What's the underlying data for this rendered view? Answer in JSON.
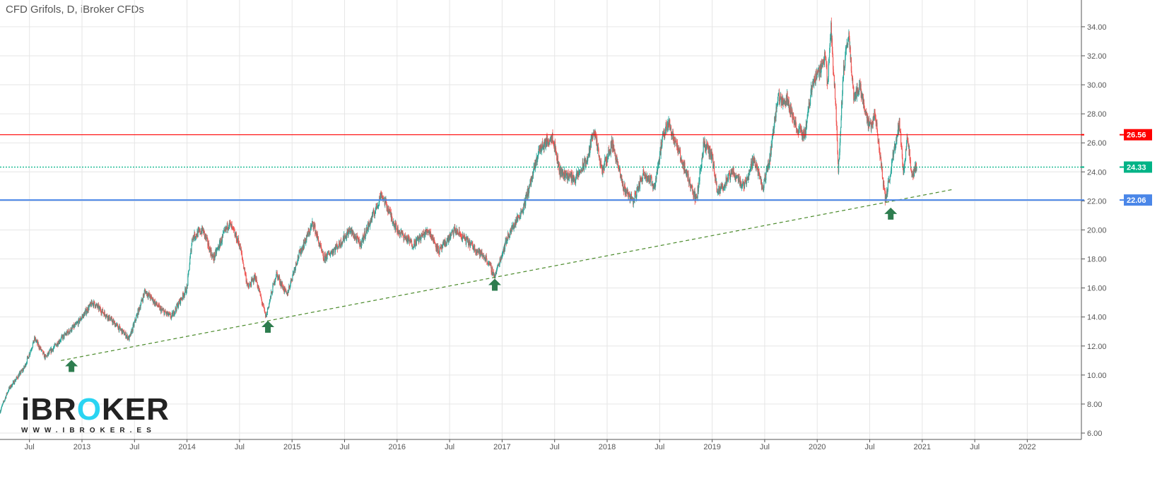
{
  "header": {
    "title": "CFD Grifols, D, iBroker CFDs"
  },
  "logo": {
    "text_a": "iBR",
    "text_o": "O",
    "text_b": "KER",
    "url": "WWW.IBROKER.ES"
  },
  "colors": {
    "up": "#26a69a",
    "down": "#ef5350",
    "resistance": "#ff0000",
    "support": "#4a86e8",
    "last": "#00b386",
    "trend": "#4a8a2a",
    "arrow": "#2e7d4f"
  },
  "chart_data": {
    "type": "candlestick",
    "title": "CFD Grifols, D, iBroker CFDs",
    "ylim": [
      5.5,
      35.5
    ],
    "y_ticks": [
      "6.00",
      "8.00",
      "10.00",
      "12.00",
      "14.00",
      "16.00",
      "18.00",
      "20.00",
      "22.00",
      "24.00",
      "26.00",
      "28.00",
      "30.00",
      "32.00",
      "34.00"
    ],
    "x_ticks": [
      {
        "t": 2012.5,
        "label": "Jul"
      },
      {
        "t": 2013,
        "label": "2013"
      },
      {
        "t": 2013.5,
        "label": "Jul"
      },
      {
        "t": 2014,
        "label": "2014"
      },
      {
        "t": 2014.5,
        "label": "Jul"
      },
      {
        "t": 2015,
        "label": "2015"
      },
      {
        "t": 2015.5,
        "label": "Jul"
      },
      {
        "t": 2016,
        "label": "2016"
      },
      {
        "t": 2016.5,
        "label": "Jul"
      },
      {
        "t": 2017,
        "label": "2017"
      },
      {
        "t": 2017.5,
        "label": "Jul"
      },
      {
        "t": 2018,
        "label": "2018"
      },
      {
        "t": 2018.5,
        "label": "Jul"
      },
      {
        "t": 2019,
        "label": "2019"
      },
      {
        "t": 2019.5,
        "label": "Jul"
      },
      {
        "t": 2020,
        "label": "2020"
      },
      {
        "t": 2020.5,
        "label": "Jul"
      },
      {
        "t": 2021,
        "label": "2021"
      },
      {
        "t": 2021.5,
        "label": "Jul"
      },
      {
        "t": 2022,
        "label": "2022"
      }
    ],
    "price_path": [
      [
        2012.22,
        7.5
      ],
      [
        2012.3,
        9
      ],
      [
        2012.45,
        10.5
      ],
      [
        2012.55,
        12.5
      ],
      [
        2012.65,
        11.2
      ],
      [
        2012.8,
        12.5
      ],
      [
        2012.95,
        13.5
      ],
      [
        2013.1,
        15
      ],
      [
        2013.25,
        14
      ],
      [
        2013.45,
        12.5
      ],
      [
        2013.6,
        15.8
      ],
      [
        2013.75,
        14.5
      ],
      [
        2013.85,
        14
      ],
      [
        2014.0,
        16
      ],
      [
        2014.05,
        19.5
      ],
      [
        2014.15,
        20
      ],
      [
        2014.25,
        18
      ],
      [
        2014.4,
        20.5
      ],
      [
        2014.5,
        19
      ],
      [
        2014.58,
        16
      ],
      [
        2014.65,
        16.8
      ],
      [
        2014.75,
        14
      ],
      [
        2014.85,
        17
      ],
      [
        2014.95,
        15.5
      ],
      [
        2015.05,
        18
      ],
      [
        2015.2,
        20.5
      ],
      [
        2015.3,
        18
      ],
      [
        2015.45,
        19
      ],
      [
        2015.55,
        20
      ],
      [
        2015.65,
        19
      ],
      [
        2015.8,
        21.5
      ],
      [
        2015.85,
        22.5
      ],
      [
        2016.0,
        20
      ],
      [
        2016.15,
        19
      ],
      [
        2016.3,
        20
      ],
      [
        2016.4,
        18.5
      ],
      [
        2016.55,
        20
      ],
      [
        2016.7,
        19
      ],
      [
        2016.85,
        18
      ],
      [
        2016.93,
        16.8
      ],
      [
        2017.05,
        19.5
      ],
      [
        2017.2,
        21.5
      ],
      [
        2017.3,
        24
      ],
      [
        2017.35,
        25.5
      ],
      [
        2017.48,
        26.5
      ],
      [
        2017.55,
        24
      ],
      [
        2017.7,
        23.5
      ],
      [
        2017.82,
        25
      ],
      [
        2017.87,
        27
      ],
      [
        2017.95,
        24
      ],
      [
        2018.05,
        26
      ],
      [
        2018.15,
        23
      ],
      [
        2018.25,
        22
      ],
      [
        2018.35,
        24
      ],
      [
        2018.45,
        23
      ],
      [
        2018.52,
        26
      ],
      [
        2018.58,
        27.5
      ],
      [
        2018.7,
        25
      ],
      [
        2018.8,
        23
      ],
      [
        2018.85,
        22
      ],
      [
        2018.92,
        26
      ],
      [
        2019.0,
        25
      ],
      [
        2019.05,
        22.5
      ],
      [
        2019.2,
        24
      ],
      [
        2019.3,
        23
      ],
      [
        2019.4,
        25
      ],
      [
        2019.48,
        22.8
      ],
      [
        2019.55,
        25
      ],
      [
        2019.62,
        29
      ],
      [
        2019.72,
        29
      ],
      [
        2019.8,
        27
      ],
      [
        2019.88,
        26.5
      ],
      [
        2019.95,
        30
      ],
      [
        2020.02,
        31
      ],
      [
        2020.08,
        32
      ],
      [
        2020.1,
        30
      ],
      [
        2020.13,
        34
      ],
      [
        2020.18,
        28
      ],
      [
        2020.2,
        24
      ],
      [
        2020.25,
        31
      ],
      [
        2020.3,
        33.5
      ],
      [
        2020.35,
        29
      ],
      [
        2020.4,
        30
      ],
      [
        2020.5,
        27
      ],
      [
        2020.55,
        28
      ],
      [
        2020.6,
        25
      ],
      [
        2020.65,
        22
      ],
      [
        2020.72,
        25
      ],
      [
        2020.78,
        27.5
      ],
      [
        2020.82,
        24
      ],
      [
        2020.86,
        26.5
      ],
      [
        2020.9,
        23.5
      ],
      [
        2020.95,
        24.5
      ]
    ],
    "horizontal_lines": [
      {
        "value": 26.56,
        "label": "26.56",
        "color": "#ff0000"
      },
      {
        "value": 24.33,
        "label": "24.33",
        "color": "#00b386",
        "style": "dotted"
      },
      {
        "value": 22.06,
        "label": "22.06",
        "color": "#4a86e8"
      }
    ],
    "trendline": [
      [
        2012.8,
        11.0
      ],
      [
        2021.3,
        22.8
      ]
    ],
    "arrows": [
      [
        2012.9,
        10.6
      ],
      [
        2014.77,
        13.3
      ],
      [
        2016.93,
        16.2
      ],
      [
        2020.7,
        21.1
      ]
    ]
  }
}
